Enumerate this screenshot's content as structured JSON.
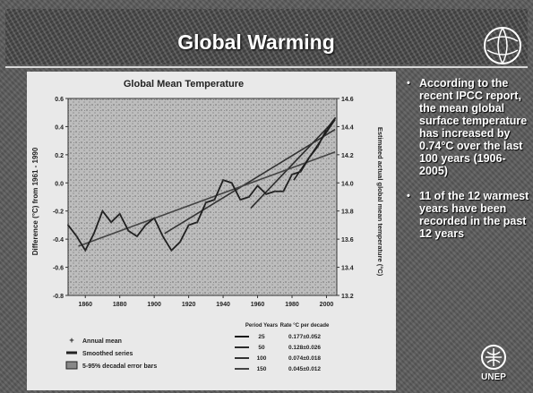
{
  "slide": {
    "title": "Global Warming",
    "bullets": [
      {
        "text": "According to the recent IPCC report, the mean global surface temperature has increased by 0.74°C over the last 100 years (1906-2005)"
      },
      {
        "text": "11 of the 12 warmest years have been recorded in the past 12 years"
      }
    ],
    "logo_label": "UNEP"
  },
  "chart_data": {
    "type": "line",
    "title": "Global Mean Temperature",
    "ylabel": "Difference (°C) from 1961 - 1990",
    "y2label": "Estimated actual global mean temperature (°C)",
    "xlim": [
      1850,
      2006
    ],
    "ylim": [
      -0.8,
      0.6
    ],
    "y2lim": [
      13.2,
      14.6
    ],
    "xticks": [
      "1860",
      "1880",
      "1900",
      "1920",
      "1940",
      "1960",
      "1980",
      "2000"
    ],
    "yticks": [
      "0.6",
      "0.4",
      "0.2",
      "0.0",
      "-0.2",
      "-0.4",
      "-0.6",
      "-0.8"
    ],
    "y2ticks": [
      "14.6",
      "14.4",
      "14.2",
      "14.0",
      "13.8",
      "13.6",
      "13.4",
      "13.2"
    ],
    "series": [
      {
        "name": "Smoothed series",
        "x": [
          1850,
          1855,
          1860,
          1865,
          1870,
          1875,
          1880,
          1885,
          1890,
          1895,
          1900,
          1905,
          1910,
          1915,
          1920,
          1925,
          1930,
          1935,
          1940,
          1945,
          1950,
          1955,
          1960,
          1965,
          1970,
          1975,
          1980,
          1985,
          1990,
          1995,
          2000,
          2005
        ],
        "values": [
          -0.3,
          -0.38,
          -0.48,
          -0.36,
          -0.2,
          -0.28,
          -0.22,
          -0.34,
          -0.38,
          -0.3,
          -0.25,
          -0.38,
          -0.48,
          -0.42,
          -0.3,
          -0.28,
          -0.14,
          -0.12,
          0.02,
          0.0,
          -0.12,
          -0.1,
          -0.02,
          -0.08,
          -0.06,
          -0.06,
          0.06,
          0.08,
          0.18,
          0.26,
          0.38,
          0.46
        ]
      }
    ],
    "trends": [
      {
        "period": "25",
        "rate": "0.177±0.052",
        "from": 1981,
        "to": 2005,
        "y0": 0.02,
        "y1": 0.45
      },
      {
        "period": "50",
        "rate": "0.128±0.026",
        "from": 1956,
        "to": 2005,
        "y0": -0.18,
        "y1": 0.45
      },
      {
        "period": "100",
        "rate": "0.074±0.018",
        "from": 1906,
        "to": 2005,
        "y0": -0.36,
        "y1": 0.38
      },
      {
        "period": "150",
        "rate": "0.045±0.012",
        "from": 1856,
        "to": 2005,
        "y0": -0.45,
        "y1": 0.22
      }
    ],
    "legend": [
      {
        "label": "Annual mean",
        "icon": "plus"
      },
      {
        "label": "Smoothed series",
        "icon": "line"
      },
      {
        "label": "5-95% decadal error bars",
        "icon": "box"
      }
    ],
    "rate_table": {
      "header_period": "Period Years",
      "header_rate": "Rate °C per decade"
    }
  }
}
